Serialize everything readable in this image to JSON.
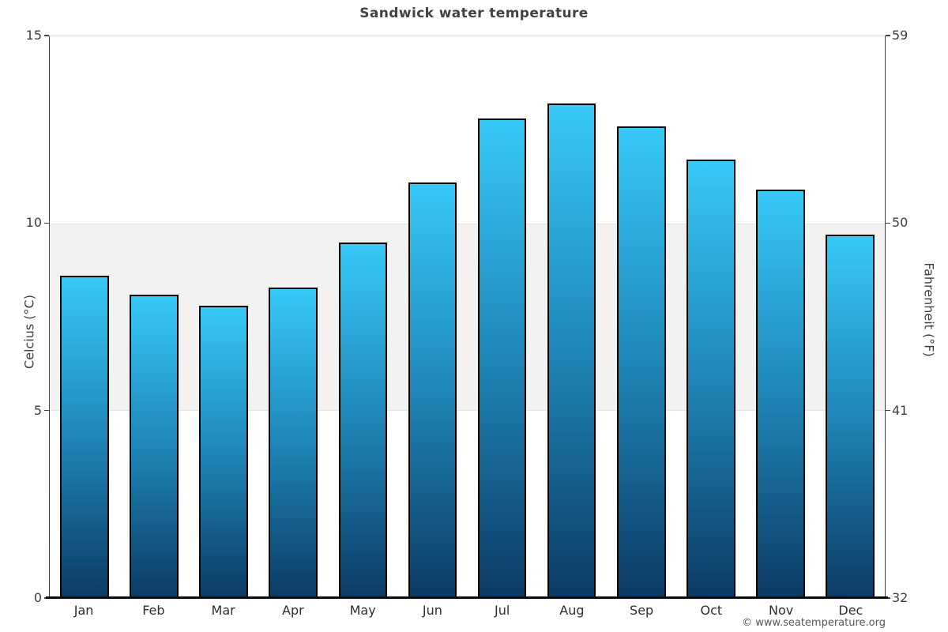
{
  "title": "Sandwick water temperature",
  "watermark": "© www.seatemperature.org",
  "chart_data": {
    "type": "bar",
    "title": "Sandwick water temperature",
    "categories": [
      "Jan",
      "Feb",
      "Mar",
      "Apr",
      "May",
      "Jun",
      "Jul",
      "Aug",
      "Sep",
      "Oct",
      "Nov",
      "Dec"
    ],
    "values": [
      8.6,
      8.1,
      7.8,
      8.3,
      9.5,
      11.1,
      12.8,
      13.2,
      12.6,
      11.7,
      10.9,
      9.7
    ],
    "unit": "°C",
    "xlabel": "",
    "ylabel_left": "Celcius (°C)",
    "ylabel_right": "Fahrenheit (°F)",
    "ylim": [
      0,
      15
    ],
    "yticks_celsius": [
      15,
      10,
      5,
      0
    ],
    "yticks_fahrenheit": [
      59,
      50,
      41,
      32
    ],
    "shaded_band_celsius": [
      5,
      10
    ],
    "legend": "none",
    "grid": "shaded horizontal band between 5 and 10 °C",
    "colors": {
      "bar_gradient_top": "#37c9f7",
      "bar_gradient_mid": "#1e86b8",
      "bar_gradient_bottom": "#0c3a63",
      "bar_border": "#050505",
      "band_shade": "#f2f2f2",
      "axis_line": "#454545",
      "bottom_axis_line": "#0a0a0a",
      "title_text": "#424242",
      "tick_text": "#3d3d3d",
      "watermark_text": "#575757"
    }
  }
}
